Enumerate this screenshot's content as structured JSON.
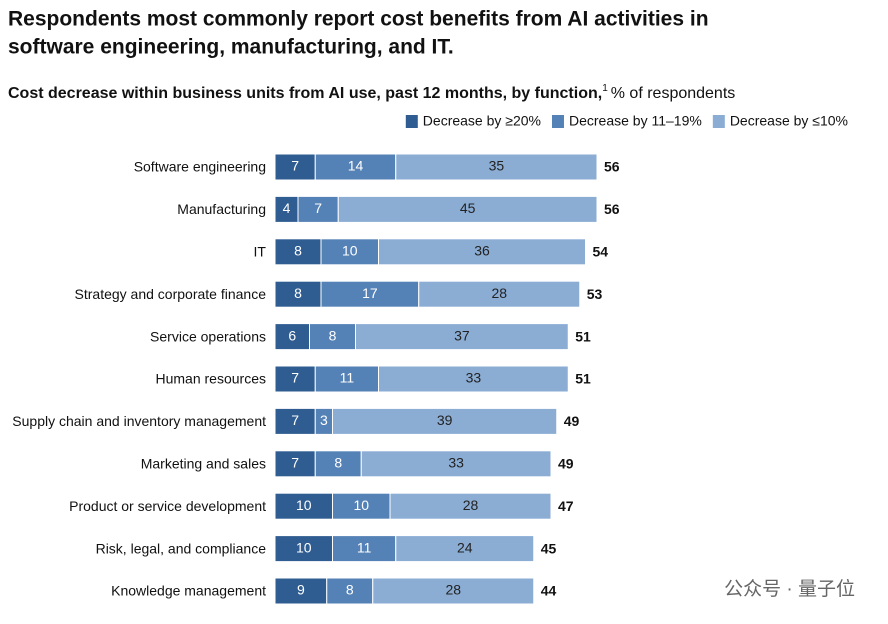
{
  "chart_data": {
    "type": "stacked-bar-horizontal",
    "title": [
      "Respondents most commonly report cost benefits from AI activities in",
      "software engineering, manufacturing, and IT."
    ],
    "subtitle": "Cost decrease within business units from AI use, past 12 months, by function,",
    "subtitle_footnote": "1",
    "unit": "% of respondents",
    "categories": [
      "Software engineering",
      "Manufacturing",
      "IT",
      "Strategy and corporate finance",
      "Service operations",
      "Human resources",
      "Supply chain and inventory management",
      "Marketing and sales",
      "Product or service development",
      "Risk, legal, and compliance",
      "Knowledge management"
    ],
    "series": [
      {
        "name": "Decrease by ≥20%",
        "color": "#2f5d91",
        "values": [
          7,
          4,
          8,
          8,
          6,
          7,
          7,
          7,
          10,
          10,
          9
        ]
      },
      {
        "name": "Decrease by 11–19%",
        "color": "#5582b6",
        "values": [
          14,
          7,
          10,
          17,
          8,
          11,
          3,
          8,
          10,
          11,
          8
        ]
      },
      {
        "name": "Decrease by ≤10%",
        "color": "#8badd4",
        "values": [
          35,
          45,
          36,
          28,
          37,
          33,
          39,
          33,
          28,
          24,
          28
        ]
      }
    ],
    "totals": [
      56,
      56,
      54,
      53,
      51,
      51,
      49,
      49,
      47,
      45,
      44
    ],
    "legend": "top-right",
    "watermark": "公众号 · 量子位"
  }
}
